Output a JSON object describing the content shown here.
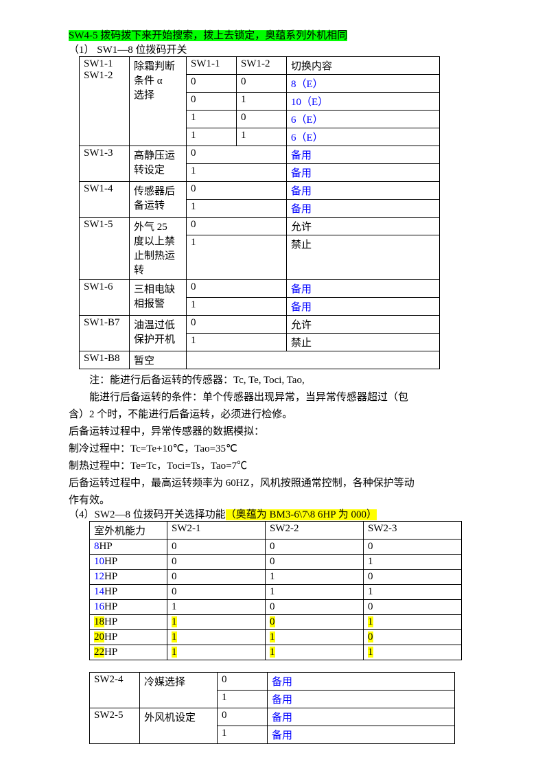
{
  "heading1": "SW4-5 拨码拨下来开始搜索，拨上去锁定，奥蕴系列外机相同",
  "subheading1": "（1） SW1—8 位拨码开关",
  "table1": {
    "r1": {
      "c1": "SW1-1",
      "c2": "除霜判断",
      "c3": "SW1-1",
      "c4": "SW1-2",
      "c5": "切换内容"
    },
    "r2": {
      "c1": "SW1-2",
      "c2": "条件 α",
      "c3": "0",
      "c4": "0",
      "c5": "8（E）"
    },
    "r3": {
      "c2": "选择",
      "c3": "0",
      "c4": "1",
      "c5": "10（E）"
    },
    "r4": {
      "c3": "1",
      "c4": "0",
      "c5": "6（E）"
    },
    "r5": {
      "c3": "1",
      "c4": "1",
      "c5": "6（E）"
    },
    "r6": {
      "c1": "SW1-3",
      "c2": "高静压运",
      "c3": "0",
      "c5": "备用"
    },
    "r7": {
      "c2": "转设定",
      "c3": "1",
      "c5": "备用"
    },
    "r8": {
      "c1": "SW1-4",
      "c2": "传感器后",
      "c3": "0",
      "c5": "备用"
    },
    "r9": {
      "c2": "备运转",
      "c3": "1",
      "c5": "备用"
    },
    "r10": {
      "c1": "SW1-5",
      "c2": "外气 25",
      "c3": "0",
      "c5": "允许"
    },
    "r11": {
      "c2a": "度以上禁",
      "c2b": "止制热运",
      "c2c": "转",
      "c3": "1",
      "c5": "禁止"
    },
    "r12": {
      "c1": "SW1-6",
      "c2": "三相电缺",
      "c3": "0",
      "c5": "备用"
    },
    "r13": {
      "c2": "相报警",
      "c3": "1",
      "c5": "备用"
    },
    "r14": {
      "c1": "SW1-B7",
      "c2": "油温过低",
      "c3": "0",
      "c5": "允许"
    },
    "r15": {
      "c2": "保护开机",
      "c3": "1",
      "c5": "禁止"
    },
    "r16": {
      "c1": "SW1-B8",
      "c2": "暂空"
    }
  },
  "notes": {
    "n1": "注：能进行后备运转的传感器：Tc, Te, Toci, Tao,",
    "n2": "能进行后备运转的条件：单个传感器出现异常，当异常传感器超过（包",
    "n3": "含）2 个时，不能进行后备运转，必须进行检修。",
    "n4": "后备运转过程中，异常传感器的数据模拟：",
    "n5": "制冷过程中：Tc=Te+10℃，Tao=35℃",
    "n6": "制热过程中：Te=Tc，Toci=Ts，Tao=7℃",
    "n7": "后备运转过程中，最高运转频率为 60HZ，风机按照通常控制，各种保护等动",
    "n8": "作有效。"
  },
  "heading2a": "（4）SW2—8 位拨码开关选择功能",
  "heading2b": "（奥蕴为 BM3-6\\7\\8 6HP 为 000）",
  "table2": {
    "header": {
      "c1": "室外机能力",
      "c2": "SW2-1",
      "c3": "SW2-2",
      "c4": "SW2-3"
    },
    "rows": [
      {
        "hp_pre": "8",
        "hp": "HP",
        "v1": "0",
        "v2": "0",
        "v3": "0",
        "hl": false
      },
      {
        "hp_pre": "10",
        "hp": "HP",
        "v1": "0",
        "v2": "0",
        "v3": "1",
        "hl": false
      },
      {
        "hp_pre": "12",
        "hp": "HP",
        "v1": "0",
        "v2": "1",
        "v3": "0",
        "hl": false
      },
      {
        "hp_pre": "14",
        "hp": "HP",
        "v1": "0",
        "v2": "1",
        "v3": "1",
        "hl": false
      },
      {
        "hp_pre": "16",
        "hp": "HP",
        "v1": "1",
        "v2": "0",
        "v3": "0",
        "hl": false
      },
      {
        "hp_pre": "18",
        "hp": "HP",
        "v1": "1",
        "v2": "0",
        "v3": "1",
        "hl": true
      },
      {
        "hp_pre": "20",
        "hp": "HP",
        "v1": "1",
        "v2": "1",
        "v3": "0",
        "hl": true
      },
      {
        "hp_pre": "22",
        "hp": "HP",
        "v1": "1",
        "v2": "1",
        "v3": "1",
        "hl": true
      }
    ]
  },
  "table3": {
    "r1": {
      "c1": "SW2-4",
      "c2": "冷媒选择",
      "c3": "0",
      "c4": "备用"
    },
    "r2": {
      "c3": "1",
      "c4": "备用"
    },
    "r3": {
      "c1": "SW2-5",
      "c2": "外风机设定",
      "c3": "0",
      "c4": "备用"
    },
    "r4": {
      "c3": "1",
      "c4": "备用"
    }
  }
}
